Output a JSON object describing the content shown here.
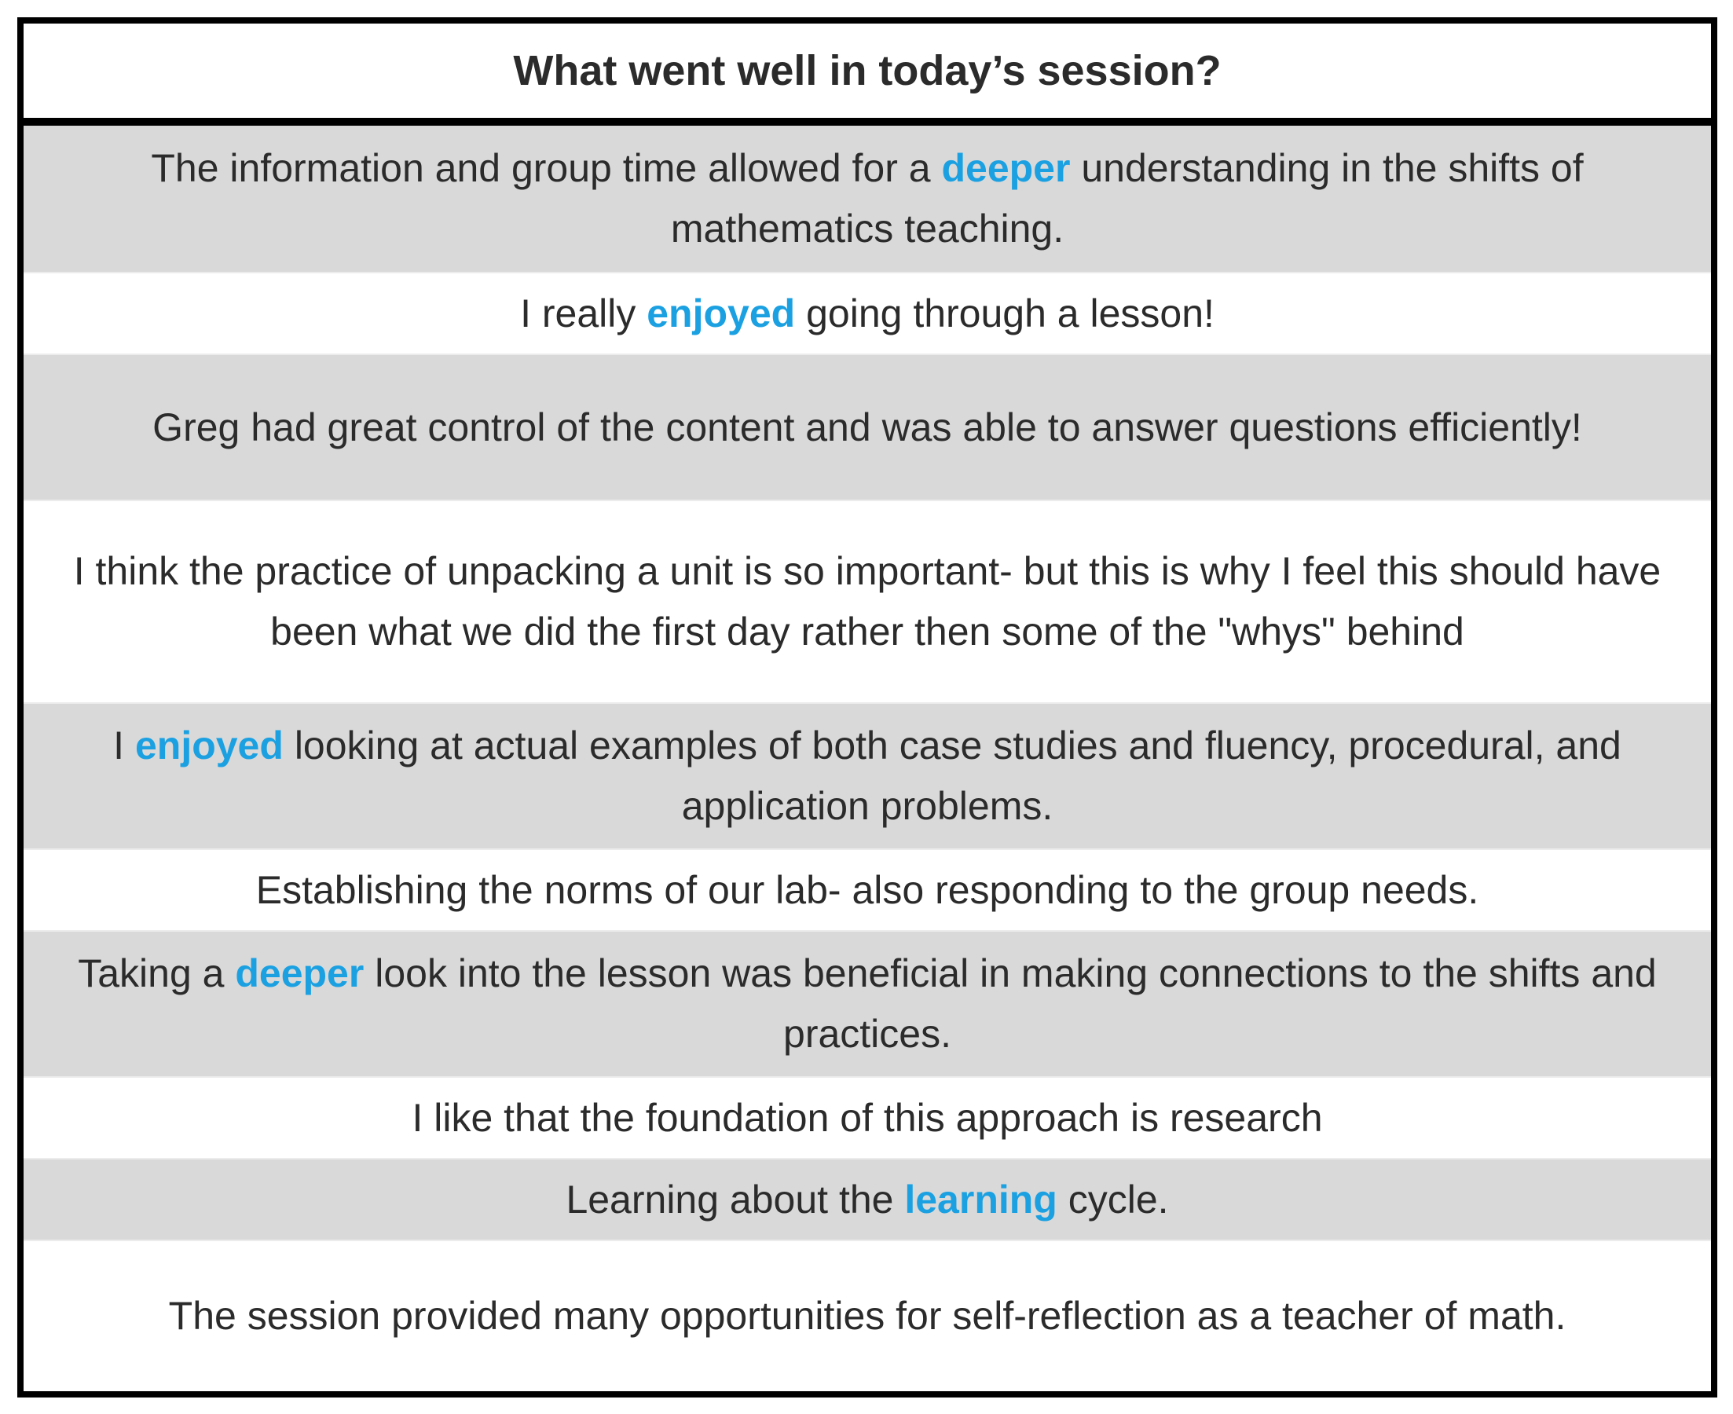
{
  "header": {
    "title": "What went well in today’s session?"
  },
  "colors": {
    "keyword": "#1ba1e2",
    "row_shaded": "#d9d9d9",
    "row_plain": "#ffffff",
    "border": "#000000",
    "text": "#2b2b2b"
  },
  "responses": [
    {
      "segments": [
        {
          "text": "The information and group time allowed for a ",
          "kw": false
        },
        {
          "text": "deeper",
          "kw": true
        },
        {
          "text": " understanding in the shifts of mathematics teaching.",
          "kw": false
        }
      ]
    },
    {
      "segments": [
        {
          "text": "I really ",
          "kw": false
        },
        {
          "text": "enjoyed",
          "kw": true
        },
        {
          "text": " going through a lesson!",
          "kw": false
        }
      ]
    },
    {
      "segments": [
        {
          "text": "Greg had great control of the content and was able to answer questions efficiently!",
          "kw": false
        }
      ]
    },
    {
      "segments": [
        {
          "text": "I think the practice of unpacking a unit is so important- but this is why I feel this should have been what we did the first day rather then some of the \"whys\" behind",
          "kw": false
        }
      ]
    },
    {
      "segments": [
        {
          "text": "I ",
          "kw": false
        },
        {
          "text": "enjoyed",
          "kw": true
        },
        {
          "text": " looking at actual examples of both case studies and fluency, procedural, and application problems.",
          "kw": false
        }
      ]
    },
    {
      "segments": [
        {
          "text": "Establishing the norms of our lab- also responding to the group needs.",
          "kw": false
        }
      ]
    },
    {
      "segments": [
        {
          "text": "Taking a ",
          "kw": false
        },
        {
          "text": "deeper",
          "kw": true
        },
        {
          "text": " look into the lesson was beneficial in making connections to the shifts and practices.",
          "kw": false
        }
      ]
    },
    {
      "segments": [
        {
          "text": "I like that the foundation of this approach is research",
          "kw": false
        }
      ]
    },
    {
      "segments": [
        {
          "text": "Learning about the ",
          "kw": false
        },
        {
          "text": "learning",
          "kw": true
        },
        {
          "text": " cycle.",
          "kw": false
        }
      ]
    },
    {
      "segments": [
        {
          "text": "The session provided many opportunities for self-reflection as a teacher of math.",
          "kw": false
        }
      ]
    }
  ]
}
